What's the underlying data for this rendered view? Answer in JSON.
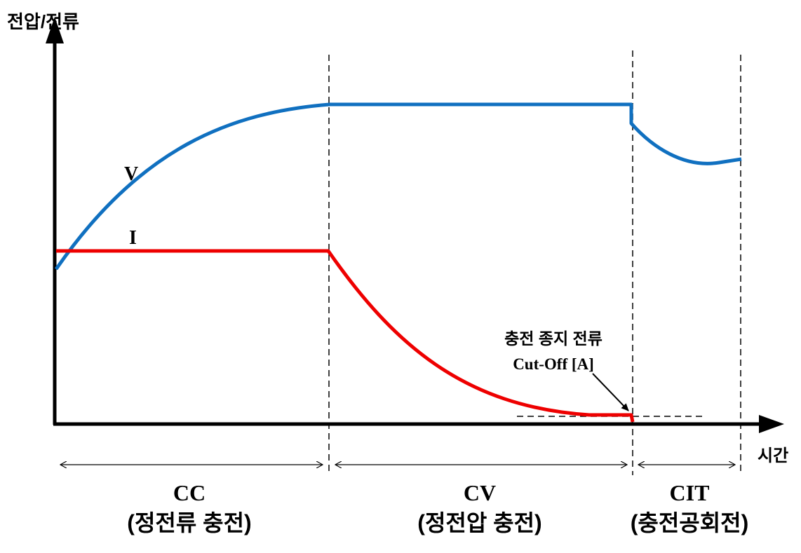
{
  "axes": {
    "y_label": "전압/전류",
    "x_label": "시간"
  },
  "curves": {
    "voltage": {
      "label": "V",
      "color": "#1070C0"
    },
    "current": {
      "label": "I",
      "color": "#EE0000"
    }
  },
  "annotation": {
    "line1": "충전 종지 전류",
    "line2": "Cut-Off [A]"
  },
  "phases": [
    {
      "abbr": "CC",
      "name": "(정전류 충전)"
    },
    {
      "abbr": "CV",
      "name": "(정전압 충전)"
    },
    {
      "abbr": "CIT",
      "name": "(충전공회전)"
    }
  ]
}
